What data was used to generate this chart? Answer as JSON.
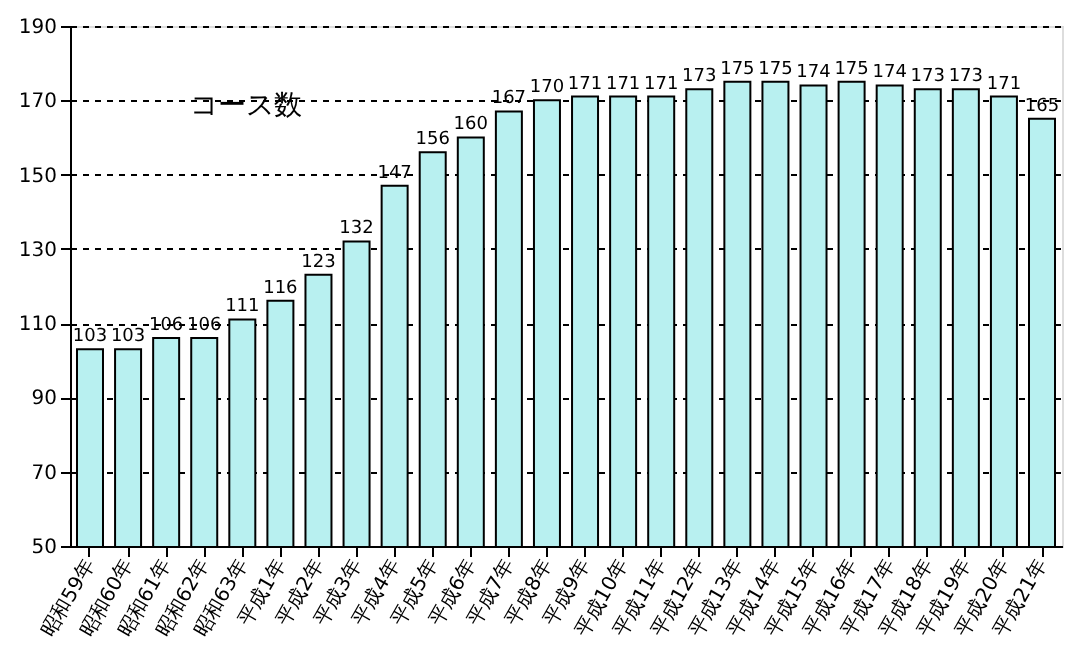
{
  "chart_data": {
    "type": "bar",
    "categories": [
      "昭和59年",
      "昭和60年",
      "昭和61年",
      "昭和62年",
      "昭和63年",
      "平成1年",
      "平成2年",
      "平成3年",
      "平成4年",
      "平成5年",
      "平成6年",
      "平成7年",
      "平成8年",
      "平成9年",
      "平成10年",
      "平成11年",
      "平成12年",
      "平成13年",
      "平成14年",
      "平成15年",
      "平成16年",
      "平成17年",
      "平成18年",
      "平成19年",
      "平成20年",
      "平成21年"
    ],
    "values": [
      103,
      103,
      106,
      106,
      111,
      116,
      123,
      132,
      147,
      156,
      160,
      167,
      170,
      171,
      171,
      171,
      173,
      175,
      175,
      174,
      175,
      174,
      173,
      173,
      171,
      165
    ],
    "color": "#b8f0f0",
    "ylim": [
      50,
      190
    ],
    "yticks": [
      50,
      70,
      90,
      110,
      130,
      150,
      170,
      190
    ],
    "grid": "y",
    "data_labels": true,
    "annotations": [
      "コース数"
    ]
  }
}
